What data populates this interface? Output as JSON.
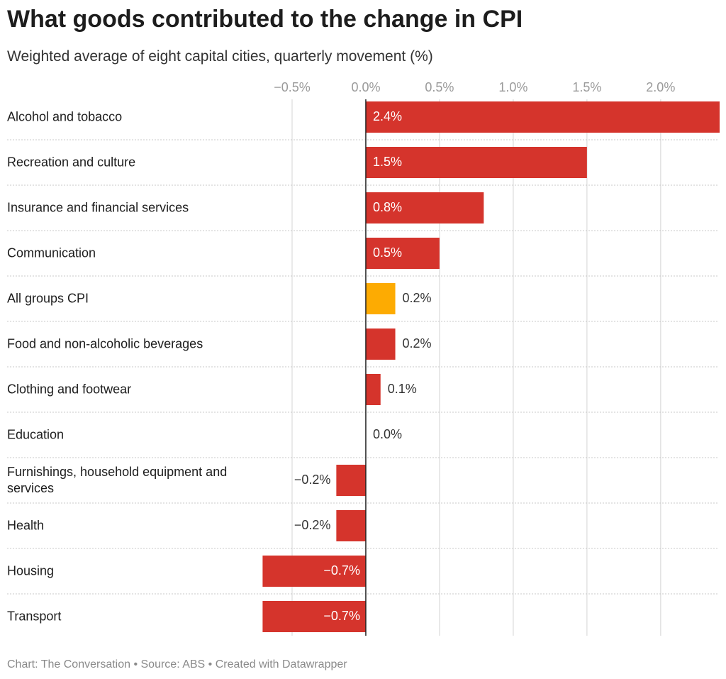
{
  "chart_data": {
    "type": "bar",
    "orientation": "horizontal",
    "title": "What goods contributed to the change in CPI",
    "subtitle": "Weighted average of eight capital cities, quarterly movement (%)",
    "source": "Chart: The Conversation • Source: ABS • Created with Datawrapper",
    "categories": [
      "Alcohol and tobacco",
      "Recreation and culture",
      "Insurance and financial services",
      "Communication",
      "All groups CPI",
      "Food and non-alcoholic beverages",
      "Clothing and footwear",
      "Education",
      "Furnishings, household equipment and services",
      "Health",
      "Housing",
      "Transport"
    ],
    "values": [
      2.4,
      1.5,
      0.8,
      0.5,
      0.2,
      0.2,
      0.1,
      0.0,
      -0.2,
      -0.2,
      -0.7,
      -0.7
    ],
    "value_labels": [
      "2.4%",
      "1.5%",
      "0.8%",
      "0.5%",
      "0.2%",
      "0.2%",
      "0.1%",
      "0.0%",
      "−0.2%",
      "−0.2%",
      "−0.7%",
      "−0.7%"
    ],
    "colors": [
      "#d5342c",
      "#d5342c",
      "#d5342c",
      "#d5342c",
      "#fdab02",
      "#d5342c",
      "#d5342c",
      "#d5342c",
      "#d5342c",
      "#d5342c",
      "#d5342c",
      "#d5342c"
    ],
    "xlim": [
      -0.7,
      2.4
    ],
    "xticks": [
      {
        "value": -0.5,
        "label": "−0.5%"
      },
      {
        "value": 0,
        "label": "0.0%"
      },
      {
        "value": 0.5,
        "label": "0.5%"
      },
      {
        "value": 1.0,
        "label": "1.0%"
      },
      {
        "value": 1.5,
        "label": "1.5%"
      },
      {
        "value": 2.0,
        "label": "2.0%"
      }
    ],
    "grid": true
  }
}
